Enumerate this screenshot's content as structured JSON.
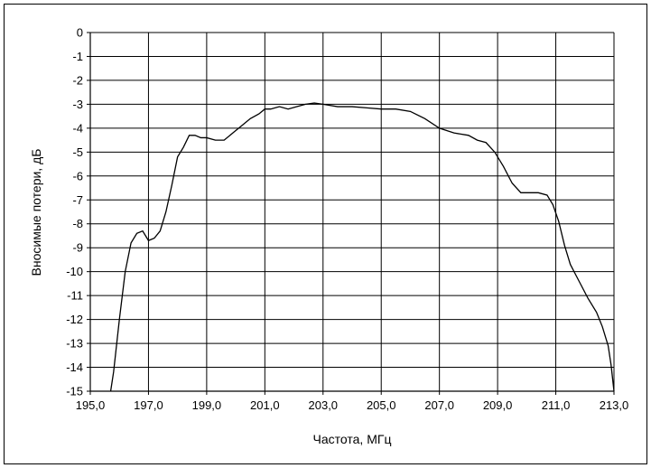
{
  "chart_data": {
    "type": "line",
    "title": "",
    "xlabel": "Частота, МГц",
    "ylabel": "Вносимые потери, дБ",
    "xlim": [
      195.0,
      213.0
    ],
    "ylim": [
      -15,
      0
    ],
    "x_ticks": [
      "195,0",
      "197,0",
      "199,0",
      "201,0",
      "203,0",
      "205,0",
      "207,0",
      "209,0",
      "211,0",
      "213,0"
    ],
    "y_ticks": [
      "0",
      "-1",
      "-2",
      "-3",
      "-4",
      "-5",
      "-6",
      "-7",
      "-8",
      "-9",
      "-10",
      "-11",
      "-12",
      "-13",
      "-14",
      "-15"
    ],
    "grid": true,
    "legend": "none",
    "line_color": "#000000",
    "series": [
      {
        "x": [
          195.7,
          195.8,
          196.0,
          196.2,
          196.4,
          196.6,
          196.8,
          197.0,
          197.2,
          197.4,
          197.6,
          197.8,
          198.0,
          198.2,
          198.4,
          198.6,
          198.8,
          199.0,
          199.3,
          199.6,
          199.9,
          200.2,
          200.5,
          200.8,
          201.0,
          201.2,
          201.5,
          201.8,
          202.1,
          202.4,
          202.7,
          203.0,
          203.5,
          204.0,
          204.5,
          205.0,
          205.5,
          206.0,
          206.5,
          207.0,
          207.5,
          208.0,
          208.3,
          208.6,
          208.9,
          209.2,
          209.5,
          209.8,
          210.1,
          210.4,
          210.7,
          210.9,
          211.1,
          211.3,
          211.5,
          211.8,
          212.1,
          212.4,
          212.6,
          212.8,
          212.9,
          213.0
        ],
        "y": [
          -15.0,
          -14.2,
          -12.0,
          -10.0,
          -8.8,
          -8.4,
          -8.3,
          -8.7,
          -8.6,
          -8.3,
          -7.5,
          -6.4,
          -5.2,
          -4.8,
          -4.3,
          -4.3,
          -4.4,
          -4.4,
          -4.5,
          -4.5,
          -4.2,
          -3.9,
          -3.6,
          -3.4,
          -3.2,
          -3.2,
          -3.1,
          -3.2,
          -3.1,
          -3.0,
          -2.95,
          -3.0,
          -3.1,
          -3.1,
          -3.15,
          -3.2,
          -3.2,
          -3.3,
          -3.6,
          -4.0,
          -4.2,
          -4.3,
          -4.5,
          -4.6,
          -5.0,
          -5.6,
          -6.3,
          -6.7,
          -6.7,
          -6.7,
          -6.8,
          -7.2,
          -7.9,
          -8.9,
          -9.7,
          -10.4,
          -11.1,
          -11.7,
          -12.3,
          -13.1,
          -13.9,
          -15.0
        ]
      }
    ]
  }
}
